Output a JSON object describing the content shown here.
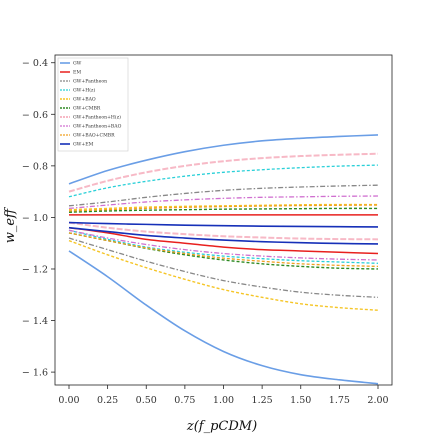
{
  "chart_data": {
    "type": "line",
    "xlabel": "z(f_pCDM)",
    "ylabel": "w_eff",
    "xlim": [
      0.0,
      2.0
    ],
    "ylim": [
      -1.65,
      -0.37
    ],
    "xticks": [
      "0.00",
      "0.25",
      "0.50",
      "0.75",
      "1.00",
      "1.25",
      "1.50",
      "1.75",
      "2.00"
    ],
    "yticks": [
      "-0.4",
      "-0.6",
      "-0.8",
      "-1.0",
      "-1.2",
      "-1.4",
      "-1.6"
    ],
    "legend_position": "top-left",
    "x": [
      0.0,
      0.25,
      0.5,
      0.75,
      1.0,
      1.25,
      1.5,
      1.75,
      2.0
    ],
    "series": [
      {
        "name": "GW",
        "color": "#6a9ee6",
        "dash": "solid",
        "width": 1.6,
        "upper": [
          -0.87,
          -0.818,
          -0.778,
          -0.745,
          -0.72,
          -0.703,
          -0.693,
          -0.686,
          -0.68
        ],
        "lower": [
          -1.13,
          -1.23,
          -1.34,
          -1.44,
          -1.52,
          -1.575,
          -1.61,
          -1.63,
          -1.645
        ]
      },
      {
        "name": "EM",
        "color": "#e8201e",
        "dash": "solid",
        "width": 1.5,
        "upper": [
          -0.99,
          -0.99,
          -0.99,
          -0.99,
          -0.99,
          -0.99,
          -0.99,
          -0.99,
          -0.99
        ],
        "lower": [
          -1.04,
          -1.06,
          -1.085,
          -1.1,
          -1.115,
          -1.125,
          -1.13,
          -1.135,
          -1.14
        ]
      },
      {
        "name": "GW+Pantheon",
        "color": "#888888",
        "dash": "5,2,1.5,2",
        "width": 1.3,
        "upper": [
          -0.955,
          -0.94,
          -0.922,
          -0.907,
          -0.895,
          -0.887,
          -0.882,
          -0.878,
          -0.875
        ],
        "lower": [
          -1.08,
          -1.125,
          -1.17,
          -1.21,
          -1.245,
          -1.27,
          -1.29,
          -1.302,
          -1.31
        ]
      },
      {
        "name": "GW+H(z)",
        "color": "#2ad0d8",
        "dash": "3,2",
        "width": 1.3,
        "upper": [
          -0.92,
          -0.885,
          -0.86,
          -0.84,
          -0.825,
          -0.815,
          -0.807,
          -0.801,
          -0.797
        ],
        "lower": [
          -1.05,
          -1.085,
          -1.115,
          -1.135,
          -1.15,
          -1.16,
          -1.168,
          -1.173,
          -1.178
        ]
      },
      {
        "name": "GW+BAO",
        "color": "#f5c526",
        "dash": "3,2",
        "width": 1.4,
        "upper": [
          -0.97,
          -0.965,
          -0.96,
          -0.957,
          -0.955,
          -0.953,
          -0.951,
          -0.95,
          -0.95
        ],
        "lower": [
          -1.09,
          -1.145,
          -1.195,
          -1.24,
          -1.28,
          -1.31,
          -1.335,
          -1.35,
          -1.36
        ]
      },
      {
        "name": "GW+CMBR",
        "color": "#2e8a23",
        "dash": "3,2",
        "width": 1.4,
        "upper": [
          -0.98,
          -0.975,
          -0.972,
          -0.97,
          -0.968,
          -0.967,
          -0.966,
          -0.965,
          -0.965
        ],
        "lower": [
          -1.06,
          -1.09,
          -1.12,
          -1.145,
          -1.165,
          -1.18,
          -1.19,
          -1.197,
          -1.2
        ]
      },
      {
        "name": "GW+Pantheon+H(z)",
        "color": "#f7b9c6",
        "dash": "6,2",
        "width": 2.0,
        "upper": [
          -0.9,
          -0.858,
          -0.825,
          -0.8,
          -0.782,
          -0.77,
          -0.762,
          -0.757,
          -0.753
        ],
        "lower": [
          -1.02,
          -1.04,
          -1.055,
          -1.065,
          -1.073,
          -1.078,
          -1.082,
          -1.084,
          -1.085
        ]
      },
      {
        "name": "GW+Pantheon+BAO",
        "color": "#d070d0",
        "dash": "5,2,1.5,2",
        "width": 1.3,
        "upper": [
          -0.965,
          -0.952,
          -0.94,
          -0.932,
          -0.926,
          -0.922,
          -0.92,
          -0.918,
          -0.917
        ],
        "lower": [
          -1.05,
          -1.08,
          -1.105,
          -1.125,
          -1.14,
          -1.15,
          -1.157,
          -1.162,
          -1.165
        ]
      },
      {
        "name": "GW+BAO+CMBR",
        "color": "#f0a020",
        "dash": "3,2",
        "width": 1.3,
        "upper": [
          -0.975,
          -0.97,
          -0.965,
          -0.961,
          -0.958,
          -0.956,
          -0.954,
          -0.953,
          -0.952
        ],
        "lower": [
          -1.06,
          -1.09,
          -1.118,
          -1.14,
          -1.158,
          -1.17,
          -1.18,
          -1.186,
          -1.19
        ]
      },
      {
        "name": "GW+EM",
        "color": "#1630b8",
        "dash": "solid",
        "width": 1.6,
        "upper": [
          -1.02,
          -1.024,
          -1.027,
          -1.03,
          -1.032,
          -1.034,
          -1.035,
          -1.036,
          -1.037
        ],
        "lower": [
          -1.04,
          -1.055,
          -1.07,
          -1.08,
          -1.088,
          -1.094,
          -1.098,
          -1.101,
          -1.103
        ]
      }
    ]
  }
}
